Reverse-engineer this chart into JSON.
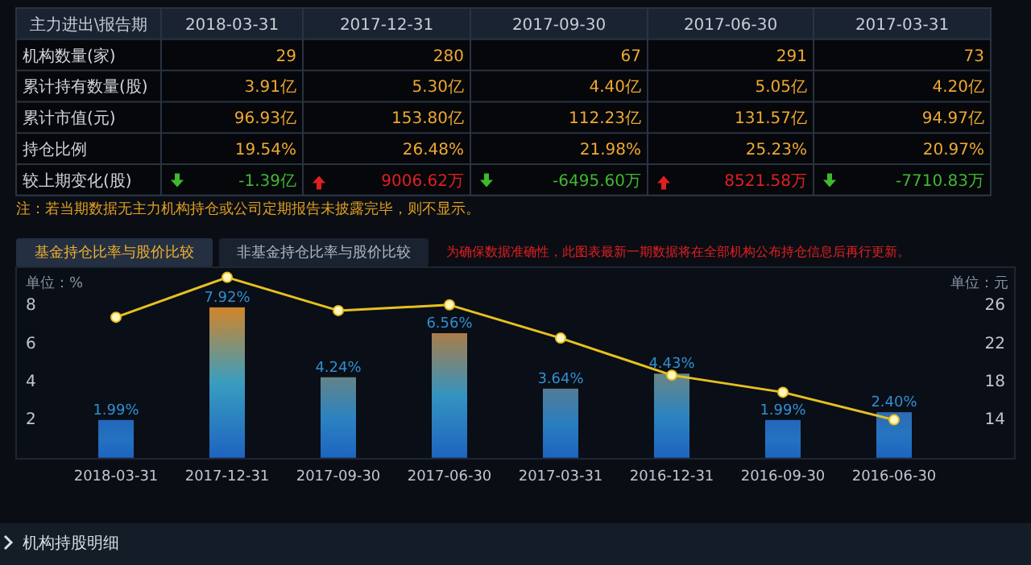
{
  "chart_data": [
    {
      "type": "other",
      "annotations": [
        "主力进出\\报告期",
        "2018-03-31",
        "2017-12-31",
        "2017-09-30",
        "2017-06-30",
        "2017-03-31",
        "机构数量(家)",
        "29",
        "280",
        "67",
        "291",
        "73",
        "累计持有数量(股)",
        "3.91亿",
        "5.30亿",
        "4.40亿",
        "5.05亿",
        "4.20亿",
        "累计市值(元)",
        "96.93亿",
        "153.80亿",
        "112.23亿",
        "131.57亿",
        "94.97亿",
        "持仓比例",
        "19.54%",
        "26.48%",
        "21.98%",
        "25.23%",
        "20.97%",
        "较上期变化(股)",
        "-1.39亿",
        "9006.62万",
        "-6495.60万",
        "8521.58万",
        "-7710.83万",
        "注：若当期数据无主力机构持仓或公司定期报告未披露完毕，则不显示。"
      ]
    },
    {
      "type": "bar",
      "categories": [
        "2018-03-31",
        "2017-12-31",
        "2017-09-30",
        "2017-06-30",
        "2017-03-31",
        "2016-12-31",
        "2016-09-30",
        "2016-06-30"
      ],
      "series": [
        {
          "type": "bar",
          "color": "#1d64c0",
          "values": [
            1.99,
            7.92,
            4.24,
            6.56,
            3.64,
            4.43,
            1.99,
            2.4
          ],
          "value_labels": [
            "1.99%",
            "7.92%",
            "4.24%",
            "6.56%",
            "3.64%",
            "4.43%",
            "1.99%",
            "2.40%"
          ]
        },
        {
          "type": "line",
          "axis": "y2",
          "color": "#e8c020",
          "marker": "circle",
          "values": [
            24.8,
            29.0,
            25.5,
            26.1,
            22.6,
            18.7,
            16.9,
            14.0
          ]
        }
      ],
      "ylabel": "单位：%",
      "y2label": "单位：元",
      "ylim": [
        0,
        10
      ],
      "yticks": [
        2,
        4,
        6,
        8
      ],
      "y2lim": [
        10,
        30
      ],
      "y2ticks": [
        14,
        18,
        22,
        26
      ],
      "annotations": [
        "基金持仓比率与股价比较",
        "非基金持仓比率与股价比较",
        "为确保数据准确性，此图表最新一期数据将在全部机构公布持仓信息后再行更新。",
        "机构持股明细"
      ]
    }
  ]
}
